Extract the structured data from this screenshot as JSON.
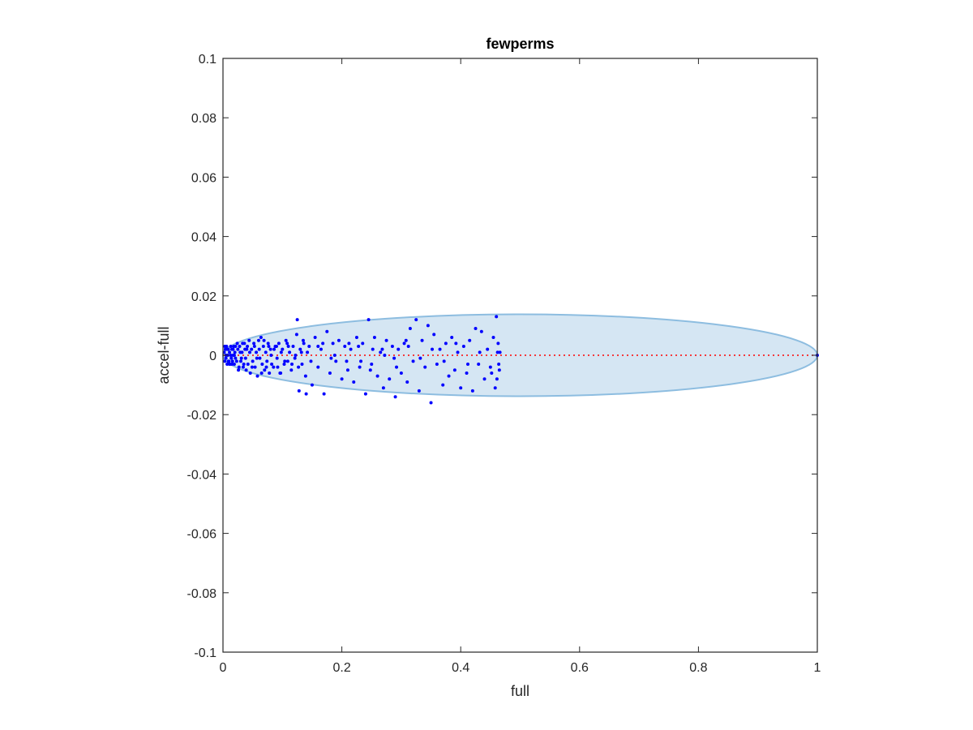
{
  "chart_data": {
    "type": "scatter",
    "title": "fewperms",
    "xlabel": "full",
    "ylabel": "accel-full",
    "xlim": [
      0,
      1
    ],
    "ylim": [
      -0.1,
      0.1
    ],
    "x_ticks": [
      "0",
      "0.2",
      "0.4",
      "0.6",
      "0.8",
      "1"
    ],
    "y_ticks": [
      "-0.1",
      "-0.08",
      "-0.06",
      "-0.04",
      "-0.02",
      "0",
      "0.02",
      "0.04",
      "0.06",
      "0.08",
      "0.1"
    ],
    "grid": false,
    "series": [
      {
        "points": [
          [
            0.002,
            0.001
          ],
          [
            0.003,
            -0.002
          ],
          [
            0.004,
            0.002
          ],
          [
            0.005,
            -0.001
          ],
          [
            0.006,
            0.003
          ],
          [
            0.007,
            -0.003
          ],
          [
            0.008,
            0.0
          ],
          [
            0.009,
            0.002
          ],
          [
            0.01,
            -0.002
          ],
          [
            0.011,
            0.001
          ],
          [
            0.012,
            -0.003
          ],
          [
            0.013,
            0.003
          ],
          [
            0.014,
            -0.001
          ],
          [
            0.015,
            0.002
          ],
          [
            0.016,
            -0.002
          ],
          [
            0.017,
            0.0
          ],
          [
            0.018,
            0.003
          ],
          [
            0.019,
            -0.003
          ],
          [
            0.02,
            0.001
          ],
          [
            0.021,
            -0.001
          ],
          [
            0.003,
            0.003
          ],
          [
            0.005,
            0.0
          ],
          [
            0.007,
            0.002
          ],
          [
            0.009,
            -0.002
          ],
          [
            0.011,
            -0.003
          ],
          [
            0.013,
            0.0
          ],
          [
            0.015,
            -0.003
          ],
          [
            0.017,
            0.002
          ],
          [
            0.019,
            0.0
          ],
          [
            0.021,
            0.003
          ],
          [
            0.023,
            -0.002
          ],
          [
            0.025,
            0.002
          ],
          [
            0.027,
            -0.004
          ],
          [
            0.029,
            0.001
          ],
          [
            0.031,
            -0.001
          ],
          [
            0.033,
            0.004
          ],
          [
            0.035,
            -0.003
          ],
          [
            0.037,
            0.002
          ],
          [
            0.039,
            -0.005
          ],
          [
            0.041,
            0.003
          ],
          [
            0.024,
            0.004
          ],
          [
            0.026,
            -0.005
          ],
          [
            0.028,
            0.003
          ],
          [
            0.03,
            -0.002
          ],
          [
            0.032,
            0.001
          ],
          [
            0.034,
            -0.004
          ],
          [
            0.036,
            0.004
          ],
          [
            0.038,
            -0.001
          ],
          [
            0.04,
            0.002
          ],
          [
            0.042,
            -0.003
          ],
          [
            0.044,
            0.005
          ],
          [
            0.046,
            -0.006
          ],
          [
            0.048,
            0.002
          ],
          [
            0.05,
            -0.002
          ],
          [
            0.052,
            0.004
          ],
          [
            0.054,
            -0.004
          ],
          [
            0.056,
            0.001
          ],
          [
            0.058,
            -0.007
          ],
          [
            0.06,
            0.005
          ],
          [
            0.062,
            -0.001
          ],
          [
            0.064,
            0.006
          ],
          [
            0.066,
            -0.003
          ],
          [
            0.068,
            0.003
          ],
          [
            0.07,
            -0.005
          ],
          [
            0.072,
            0.001
          ],
          [
            0.074,
            -0.002
          ],
          [
            0.076,
            0.004
          ],
          [
            0.078,
            -0.006
          ],
          [
            0.08,
            0.002
          ],
          [
            0.082,
            -0.003
          ],
          [
            0.045,
            0.001
          ],
          [
            0.049,
            -0.004
          ],
          [
            0.053,
            0.003
          ],
          [
            0.057,
            -0.001
          ],
          [
            0.061,
            0.002
          ],
          [
            0.065,
            -0.006
          ],
          [
            0.069,
            0.005
          ],
          [
            0.073,
            -0.004
          ],
          [
            0.077,
            0.003
          ],
          [
            0.081,
            0.0
          ],
          [
            0.085,
            -0.004
          ],
          [
            0.088,
            0.003
          ],
          [
            0.091,
            -0.001
          ],
          [
            0.094,
            0.004
          ],
          [
            0.097,
            -0.006
          ],
          [
            0.1,
            0.002
          ],
          [
            0.103,
            -0.003
          ],
          [
            0.106,
            0.005
          ],
          [
            0.109,
            -0.002
          ],
          [
            0.112,
            0.001
          ],
          [
            0.115,
            -0.005
          ],
          [
            0.118,
            0.003
          ],
          [
            0.121,
            -0.001
          ],
          [
            0.124,
            0.007
          ],
          [
            0.127,
            -0.004
          ],
          [
            0.13,
            0.002
          ],
          [
            0.133,
            -0.003
          ],
          [
            0.136,
            0.004
          ],
          [
            0.139,
            -0.007
          ],
          [
            0.142,
            0.001
          ],
          [
            0.125,
            0.012
          ],
          [
            0.128,
            -0.012
          ],
          [
            0.135,
            0.005
          ],
          [
            0.14,
            -0.013
          ],
          [
            0.145,
            0.003
          ],
          [
            0.15,
            -0.01
          ],
          [
            0.155,
            0.006
          ],
          [
            0.16,
            -0.004
          ],
          [
            0.165,
            0.002
          ],
          [
            0.17,
            -0.013
          ],
          [
            0.175,
            0.008
          ],
          [
            0.18,
            -0.006
          ],
          [
            0.185,
            0.004
          ],
          [
            0.19,
            -0.002
          ],
          [
            0.195,
            0.005
          ],
          [
            0.2,
            -0.008
          ],
          [
            0.205,
            0.003
          ],
          [
            0.21,
            -0.005
          ],
          [
            0.215,
            0.002
          ],
          [
            0.22,
            -0.009
          ],
          [
            0.225,
            0.006
          ],
          [
            0.23,
            -0.004
          ],
          [
            0.235,
            0.004
          ],
          [
            0.24,
            -0.013
          ],
          [
            0.245,
            0.012
          ],
          [
            0.25,
            -0.003
          ],
          [
            0.255,
            0.006
          ],
          [
            0.26,
            -0.007
          ],
          [
            0.265,
            0.001
          ],
          [
            0.27,
            -0.011
          ],
          [
            0.275,
            0.005
          ],
          [
            0.28,
            -0.008
          ],
          [
            0.285,
            0.003
          ],
          [
            0.29,
            -0.014
          ],
          [
            0.295,
            0.002
          ],
          [
            0.3,
            -0.006
          ],
          [
            0.305,
            0.004
          ],
          [
            0.31,
            -0.009
          ],
          [
            0.315,
            0.009
          ],
          [
            0.32,
            -0.002
          ],
          [
            0.325,
            0.012
          ],
          [
            0.33,
            -0.012
          ],
          [
            0.335,
            0.005
          ],
          [
            0.34,
            -0.004
          ],
          [
            0.345,
            0.01
          ],
          [
            0.35,
            -0.016
          ],
          [
            0.355,
            0.007
          ],
          [
            0.36,
            -0.003
          ],
          [
            0.365,
            0.002
          ],
          [
            0.37,
            -0.01
          ],
          [
            0.375,
            0.004
          ],
          [
            0.38,
            -0.007
          ],
          [
            0.385,
            0.006
          ],
          [
            0.39,
            -0.005
          ],
          [
            0.395,
            0.001
          ],
          [
            0.4,
            -0.011
          ],
          [
            0.405,
            0.003
          ],
          [
            0.41,
            -0.006
          ],
          [
            0.415,
            0.005
          ],
          [
            0.42,
            -0.012
          ],
          [
            0.425,
            0.009
          ],
          [
            0.43,
            -0.003
          ],
          [
            0.435,
            0.008
          ],
          [
            0.44,
            -0.008
          ],
          [
            0.445,
            0.002
          ],
          [
            0.45,
            -0.004
          ],
          [
            0.455,
            0.006
          ],
          [
            0.458,
            -0.011
          ],
          [
            0.46,
            0.013
          ],
          [
            0.462,
            0.001
          ],
          [
            0.16,
            0.003
          ],
          [
            0.182,
            -0.001
          ],
          [
            0.212,
            0.004
          ],
          [
            0.232,
            -0.002
          ],
          [
            0.252,
            0.002
          ],
          [
            0.272,
            0.0
          ],
          [
            0.292,
            -0.004
          ],
          [
            0.312,
            0.003
          ],
          [
            0.332,
            -0.001
          ],
          [
            0.352,
            0.002
          ],
          [
            0.372,
            -0.002
          ],
          [
            0.392,
            0.004
          ],
          [
            0.412,
            -0.003
          ],
          [
            0.432,
            0.001
          ],
          [
            0.452,
            -0.006
          ],
          [
            0.463,
            0.004
          ],
          [
            0.464,
            -0.003
          ],
          [
            0.466,
            0.001
          ],
          [
            0.465,
            -0.005
          ],
          [
            0.461,
            -0.008
          ],
          [
            0.132,
            0.001
          ],
          [
            0.148,
            -0.002
          ],
          [
            0.168,
            0.004
          ],
          [
            0.188,
            0.0
          ],
          [
            0.208,
            -0.002
          ],
          [
            0.228,
            0.003
          ],
          [
            0.248,
            -0.005
          ],
          [
            0.268,
            0.002
          ],
          [
            0.288,
            -0.001
          ],
          [
            0.308,
            0.005
          ],
          [
            0.086,
            0.002
          ],
          [
            0.092,
            -0.004
          ],
          [
            0.098,
            0.001
          ],
          [
            0.104,
            -0.002
          ],
          [
            0.11,
            0.003
          ],
          [
            0.116,
            -0.003
          ],
          [
            0.122,
            0.0
          ],
          [
            0.108,
            0.004
          ],
          [
            0.096,
            -0.006
          ],
          [
            0.09,
            0.003
          ],
          [
            1.0,
            0.0
          ]
        ]
      }
    ],
    "reference_line": {
      "y": 0,
      "color": "#ff0000",
      "style": "dotted"
    },
    "ellipse": {
      "cx": 0.5,
      "cy": 0.0,
      "rx": 0.5,
      "ry": 0.0138,
      "fill": "#d5e6f3",
      "stroke": "#8dbde0"
    },
    "colors": {
      "points": "#0000ff",
      "axes": "#262626"
    }
  }
}
